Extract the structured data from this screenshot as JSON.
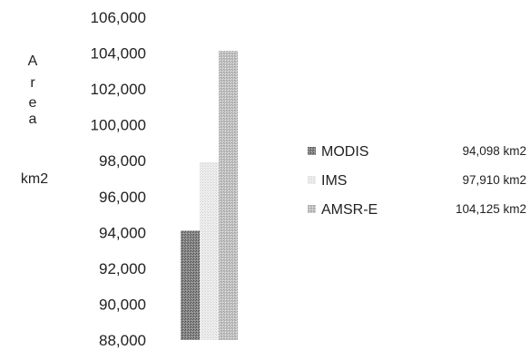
{
  "chart_data": {
    "type": "bar",
    "categories": [
      "MODIS",
      "IMS",
      "AMSR-E"
    ],
    "values": [
      94098,
      97910,
      104125
    ],
    "value_labels": [
      "94,098 km2",
      "97,910 km2",
      "104,125 km2"
    ],
    "colors": [
      "#777777",
      "#e2e2e2",
      "#bdbdbd"
    ],
    "ylabel_letters": [
      "A",
      "r",
      "e",
      "a"
    ],
    "ylabel_unit": "km2",
    "ylim": [
      88000,
      106000
    ],
    "yticks": [
      {
        "value": 106000,
        "label": "106,000"
      },
      {
        "value": 104000,
        "label": "104,000"
      },
      {
        "value": 102000,
        "label": "102,000"
      },
      {
        "value": 100000,
        "label": "100,000"
      },
      {
        "value": 98000,
        "label": "98,000"
      },
      {
        "value": 96000,
        "label": "96,000"
      },
      {
        "value": 94000,
        "label": "94,000"
      },
      {
        "value": 92000,
        "label": "92,000"
      },
      {
        "value": 90000,
        "label": "90,000"
      },
      {
        "value": 88000,
        "label": "88,000"
      }
    ],
    "legend_position": "right",
    "grid": false
  }
}
